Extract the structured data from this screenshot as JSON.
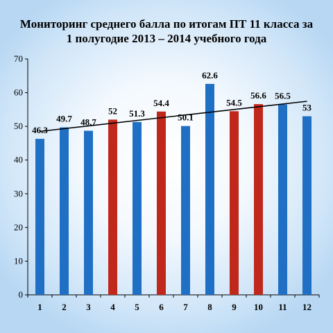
{
  "chart_data": {
    "type": "bar",
    "title": "Мониторинг среднего балла по итогам ПТ 11 класса за",
    "subtitle": "1 полугодие 2013 – 2014 учебного года",
    "categories": [
      "1",
      "2",
      "3",
      "4",
      "5",
      "6",
      "7",
      "8",
      "9",
      "10",
      "11",
      "12"
    ],
    "values": [
      46.3,
      49.7,
      48.7,
      52,
      51.3,
      54.4,
      50.1,
      62.6,
      54.5,
      56.6,
      56.5,
      53
    ],
    "data_labels": [
      "46.3",
      "49.7",
      "48.7",
      "52",
      "51.3",
      "54.4",
      "50.1",
      "62.6",
      "54.5",
      "56.6",
      "56.5",
      "53"
    ],
    "bar_colors": [
      "#1f6fc5",
      "#1f6fc5",
      "#1f6fc5",
      "#c0281c",
      "#1f6fc5",
      "#c0281c",
      "#1f6fc5",
      "#1f6fc5",
      "#c0281c",
      "#c0281c",
      "#1f6fc5",
      "#1f6fc5"
    ],
    "ylim": [
      0,
      70
    ],
    "yticks": [
      0,
      10,
      20,
      30,
      40,
      50,
      60,
      70
    ],
    "grid": false,
    "legend": "none",
    "trendline": {
      "type": "linear",
      "color": "#000000"
    }
  }
}
